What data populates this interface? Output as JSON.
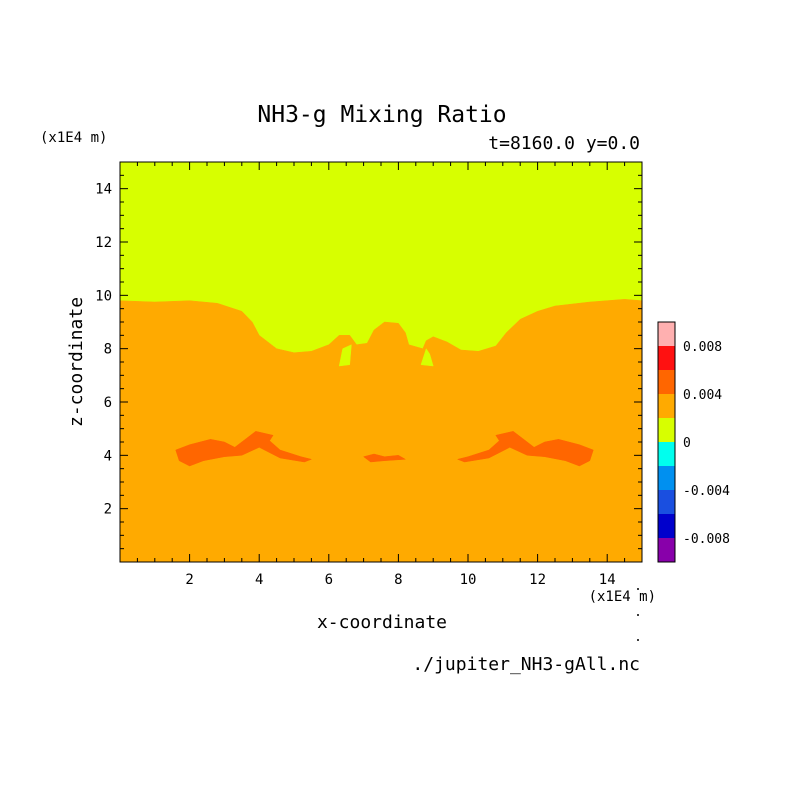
{
  "chart_data": {
    "type": "heatmap",
    "title": "NH3-g Mixing Ratio",
    "subtitle": "t=8160.0 y=0.0",
    "xlabel": "x-coordinate",
    "ylabel": "z-coordinate",
    "x_unit": "(x1E4 m)",
    "z_unit": "(x1E4 m)",
    "source_file": "./jupiter_NH3-gAll.nc",
    "xlim": [
      0,
      15
    ],
    "ylim": [
      0,
      15
    ],
    "x_ticks": [
      2,
      4,
      6,
      8,
      10,
      12,
      14
    ],
    "y_ticks": [
      2,
      4,
      6,
      8,
      10,
      12,
      14
    ],
    "grid": false,
    "legend_placement": "right",
    "colorbar": {
      "levels": [
        -0.01,
        -0.008,
        -0.006,
        -0.004,
        -0.002,
        0,
        0.002,
        0.004,
        0.006,
        0.008,
        0.01
      ],
      "colors": [
        "#8800aa",
        "#0000cc",
        "#1a4fe0",
        "#0090f0",
        "#00ffee",
        "#d7ff00",
        "#ffaa00",
        "#ff6600",
        "#ff1111",
        "#ffb0b0"
      ],
      "labels": [
        {
          "value": 0.008,
          "text": "0.008"
        },
        {
          "value": 0.004,
          "text": "0.004"
        },
        {
          "value": 0,
          "text": "0"
        },
        {
          "value": -0.004,
          "text": "-0.004"
        },
        {
          "value": -0.008,
          "text": "-0.008"
        }
      ]
    },
    "regions": [
      {
        "name": "upper",
        "fill": "#d7ff00",
        "level": "0 to 0.002",
        "points": [
          [
            0,
            15
          ],
          [
            15,
            15
          ],
          [
            15,
            9.8
          ],
          [
            14.5,
            9.85
          ],
          [
            13.5,
            9.75
          ],
          [
            12.5,
            9.6
          ],
          [
            12,
            9.4
          ],
          [
            11.5,
            9.1
          ],
          [
            11.1,
            8.6
          ],
          [
            10.8,
            8.1
          ],
          [
            10.3,
            7.9
          ],
          [
            9.8,
            7.95
          ],
          [
            9.4,
            8.25
          ],
          [
            9.0,
            8.45
          ],
          [
            8.8,
            8.3
          ],
          [
            8.7,
            8.0
          ],
          [
            8.3,
            8.15
          ],
          [
            8.2,
            8.6
          ],
          [
            8.0,
            8.95
          ],
          [
            7.6,
            9.0
          ],
          [
            7.3,
            8.7
          ],
          [
            7.1,
            8.2
          ],
          [
            6.8,
            8.15
          ],
          [
            6.6,
            8.5
          ],
          [
            6.3,
            8.5
          ],
          [
            6.0,
            8.15
          ],
          [
            5.5,
            7.9
          ],
          [
            5.0,
            7.85
          ],
          [
            4.5,
            8.0
          ],
          [
            4.0,
            8.5
          ],
          [
            3.8,
            9.0
          ],
          [
            3.5,
            9.4
          ],
          [
            2.8,
            9.7
          ],
          [
            2.0,
            9.8
          ],
          [
            1.0,
            9.75
          ],
          [
            0,
            9.8
          ]
        ]
      },
      {
        "name": "lower",
        "fill": "#ffaa00",
        "level": "0.002 to 0.004",
        "points": [
          [
            0,
            9.8
          ],
          [
            1.0,
            9.75
          ],
          [
            2.0,
            9.8
          ],
          [
            2.8,
            9.7
          ],
          [
            3.5,
            9.4
          ],
          [
            3.8,
            9.0
          ],
          [
            4.0,
            8.5
          ],
          [
            4.5,
            8.0
          ],
          [
            5.0,
            7.85
          ],
          [
            5.5,
            7.9
          ],
          [
            6.0,
            8.15
          ],
          [
            6.3,
            8.5
          ],
          [
            6.6,
            8.5
          ],
          [
            6.8,
            8.15
          ],
          [
            7.1,
            8.2
          ],
          [
            7.3,
            8.7
          ],
          [
            7.6,
            9.0
          ],
          [
            8.0,
            8.95
          ],
          [
            8.2,
            8.6
          ],
          [
            8.3,
            8.15
          ],
          [
            8.7,
            8.0
          ],
          [
            8.8,
            8.3
          ],
          [
            9.0,
            8.45
          ],
          [
            9.4,
            8.25
          ],
          [
            9.8,
            7.95
          ],
          [
            10.3,
            7.9
          ],
          [
            10.8,
            8.1
          ],
          [
            11.1,
            8.6
          ],
          [
            11.5,
            9.1
          ],
          [
            12,
            9.4
          ],
          [
            12.5,
            9.6
          ],
          [
            13.5,
            9.75
          ],
          [
            14.5,
            9.85
          ],
          [
            15,
            9.8
          ],
          [
            15,
            0
          ],
          [
            0,
            0
          ]
        ]
      },
      {
        "name": "pocket-left",
        "fill": "#d7ff00",
        "level": "0 to 0.002",
        "points": [
          [
            6.4,
            8.0
          ],
          [
            6.65,
            8.15
          ],
          [
            6.6,
            7.4
          ],
          [
            6.3,
            7.35
          ]
        ]
      },
      {
        "name": "pocket-right",
        "fill": "#d7ff00",
        "level": "0 to 0.002",
        "points": [
          [
            8.8,
            8.0
          ],
          [
            8.65,
            7.4
          ],
          [
            9.0,
            7.35
          ],
          [
            8.9,
            7.8
          ]
        ]
      },
      {
        "name": "blob-left",
        "fill": "#ff6600",
        "level": "0.004 to 0.006",
        "points": [
          [
            1.6,
            4.2
          ],
          [
            2.0,
            4.4
          ],
          [
            2.6,
            4.6
          ],
          [
            3.0,
            4.5
          ],
          [
            3.3,
            4.3
          ],
          [
            3.6,
            4.6
          ],
          [
            3.9,
            4.9
          ],
          [
            4.4,
            4.75
          ],
          [
            4.3,
            4.55
          ],
          [
            4.6,
            4.2
          ],
          [
            5.2,
            3.95
          ],
          [
            5.5,
            3.85
          ],
          [
            5.3,
            3.75
          ],
          [
            4.6,
            3.9
          ],
          [
            4.0,
            4.3
          ],
          [
            3.5,
            4.0
          ],
          [
            3.0,
            3.95
          ],
          [
            2.4,
            3.8
          ],
          [
            2.0,
            3.6
          ],
          [
            1.7,
            3.8
          ]
        ]
      },
      {
        "name": "blob-right",
        "fill": "#ff6600",
        "level": "0.004 to 0.006",
        "points": [
          [
            13.6,
            4.2
          ],
          [
            13.2,
            4.4
          ],
          [
            12.6,
            4.6
          ],
          [
            12.2,
            4.5
          ],
          [
            11.9,
            4.3
          ],
          [
            11.6,
            4.6
          ],
          [
            11.3,
            4.9
          ],
          [
            10.8,
            4.75
          ],
          [
            10.9,
            4.55
          ],
          [
            10.6,
            4.2
          ],
          [
            10.0,
            3.95
          ],
          [
            9.7,
            3.85
          ],
          [
            9.9,
            3.75
          ],
          [
            10.6,
            3.9
          ],
          [
            11.2,
            4.3
          ],
          [
            11.7,
            4.0
          ],
          [
            12.2,
            3.95
          ],
          [
            12.8,
            3.8
          ],
          [
            13.2,
            3.6
          ],
          [
            13.5,
            3.8
          ]
        ]
      },
      {
        "name": "blob-center",
        "fill": "#ff6600",
        "level": "0.004 to 0.006",
        "points": [
          [
            7.0,
            3.95
          ],
          [
            7.3,
            4.05
          ],
          [
            7.6,
            3.95
          ],
          [
            8.0,
            4.0
          ],
          [
            8.2,
            3.85
          ],
          [
            7.6,
            3.8
          ],
          [
            7.2,
            3.75
          ]
        ]
      }
    ]
  }
}
